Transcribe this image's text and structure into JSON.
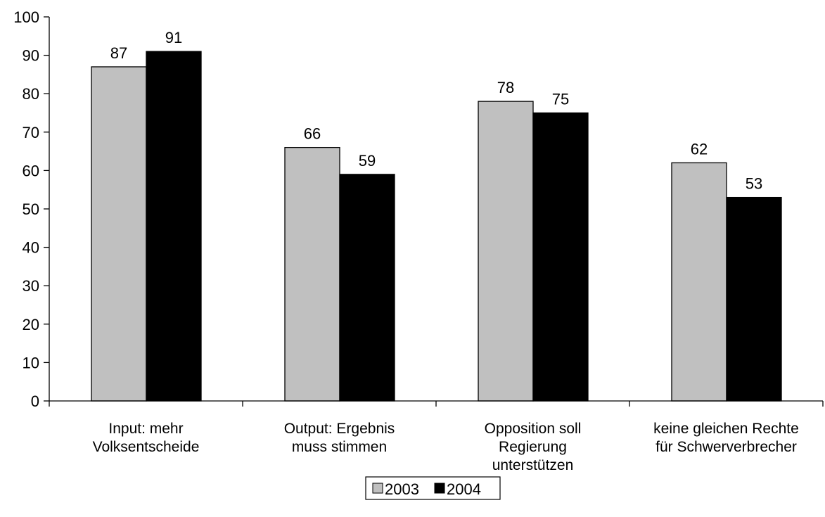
{
  "chart_data": {
    "type": "bar",
    "title": "",
    "xlabel": "",
    "ylabel": "",
    "ylim": [
      0,
      100
    ],
    "yticks": [
      0,
      10,
      20,
      30,
      40,
      50,
      60,
      70,
      80,
      90,
      100
    ],
    "grid": false,
    "legend_position": "bottom-center",
    "categories": [
      [
        "Input: mehr",
        "Volksentscheide"
      ],
      [
        "Output: Ergebnis",
        "muss stimmen"
      ],
      [
        "Opposition soll",
        "Regierung",
        "unterstützen"
      ],
      [
        "keine gleichen Rechte",
        "für Schwerverbrecher"
      ]
    ],
    "series": [
      {
        "name": "2003",
        "color": "#c0c0c0",
        "values": [
          87,
          66,
          78,
          62
        ],
        "labels": [
          "87",
          "66",
          "78",
          "62"
        ]
      },
      {
        "name": "2004",
        "color": "#000000",
        "values": [
          91,
          59,
          75,
          53
        ],
        "labels": [
          "91",
          "59",
          "75",
          "53"
        ]
      }
    ]
  }
}
